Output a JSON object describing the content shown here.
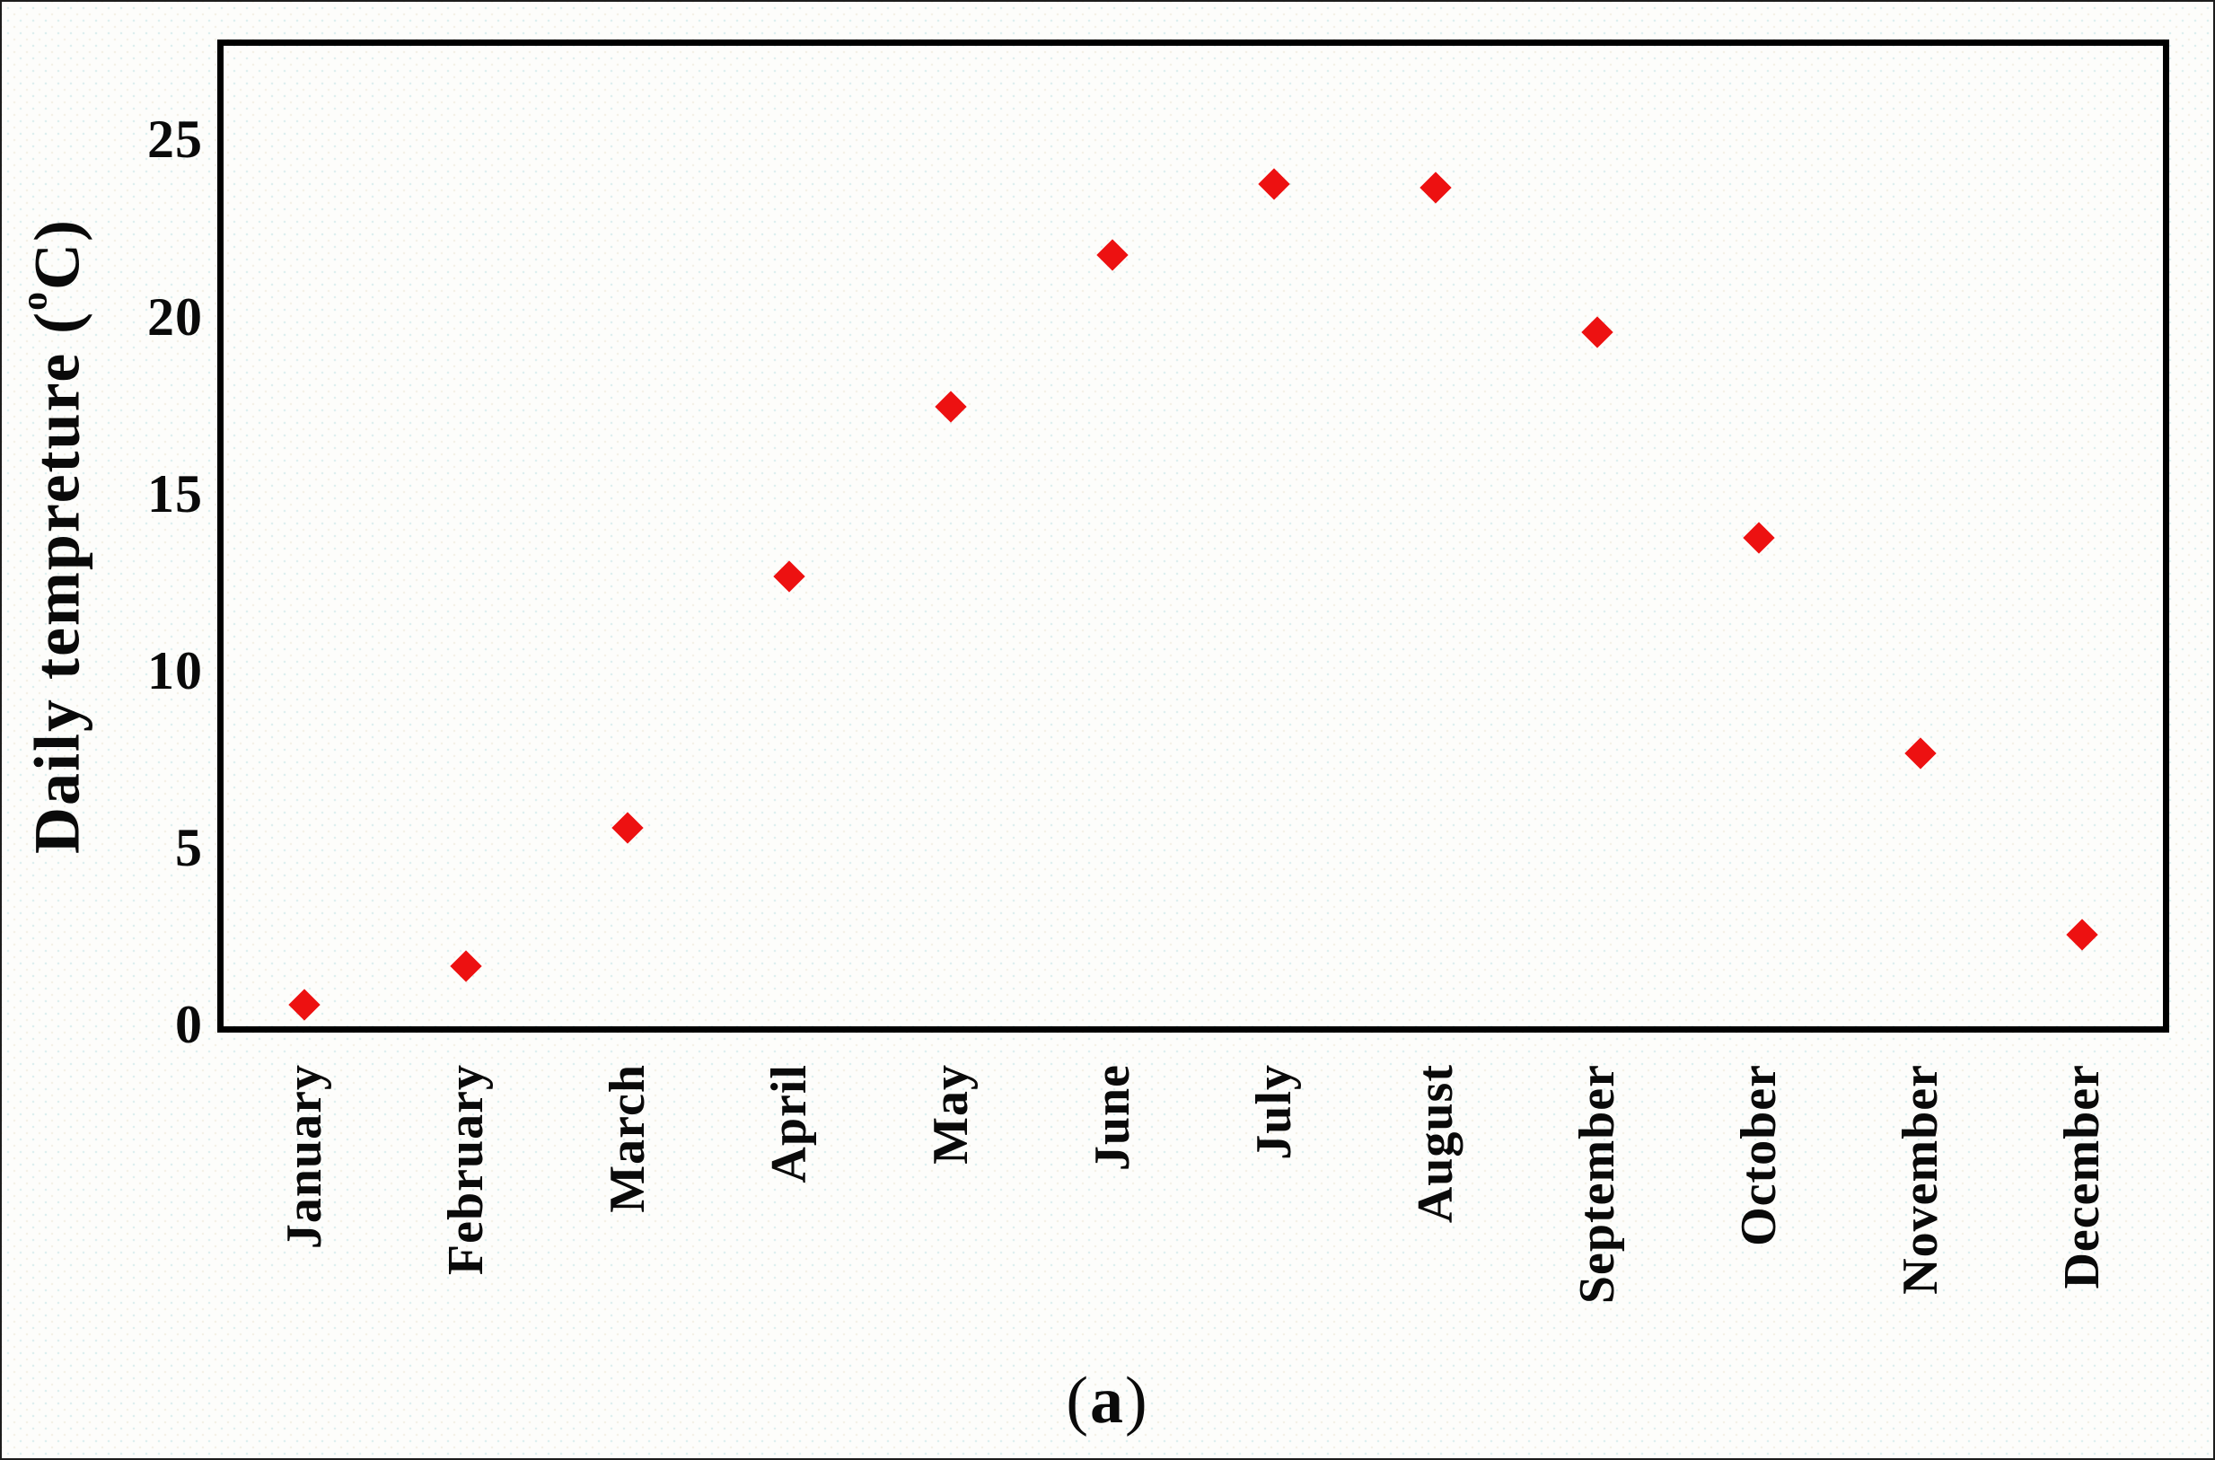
{
  "figure": {
    "caption_open": "(",
    "caption_letter": "a",
    "caption_close": ")"
  },
  "chart_data": {
    "type": "scatter",
    "title": "",
    "xlabel": "",
    "ylabel": "Daily tempreture (°C)",
    "ylabel_parts": {
      "prefix": "Daily tempreture (",
      "superscript": "o",
      "suffix": "C)"
    },
    "categories": [
      "January",
      "February",
      "March",
      "April",
      "May",
      "June",
      "July",
      "August",
      "September",
      "October",
      "November",
      "December"
    ],
    "series": [
      {
        "name": "Daily temperature",
        "values": [
          0.6,
          1.7,
          5.6,
          12.7,
          17.5,
          21.8,
          23.8,
          23.7,
          19.6,
          13.8,
          7.7,
          2.6
        ]
      }
    ],
    "yticks": [
      0,
      5,
      10,
      15,
      20,
      25
    ],
    "ylim": [
      0,
      27.7
    ],
    "grid": false,
    "legend": false,
    "marker": {
      "shape": "diamond",
      "color": "#ed1111"
    },
    "frame_color": "#000000"
  }
}
